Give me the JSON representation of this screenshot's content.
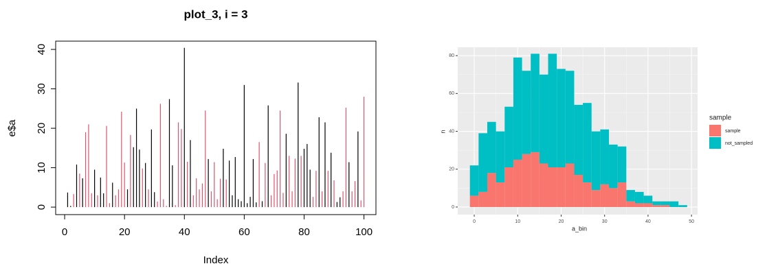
{
  "chart_data": [
    {
      "type": "spike",
      "title": "plot_3, i = 3",
      "xlabel": "Index",
      "ylabel": "e$a",
      "x": [
        1,
        2,
        3,
        4,
        5,
        6,
        7,
        8,
        9,
        10,
        11,
        12,
        13,
        14,
        15,
        16,
        17,
        18,
        19,
        20,
        21,
        22,
        23,
        24,
        25,
        26,
        27,
        28,
        29,
        30,
        31,
        32,
        33,
        34,
        35,
        36,
        37,
        38,
        39,
        40,
        41,
        42,
        43,
        44,
        45,
        46,
        47,
        48,
        49,
        50,
        51,
        52,
        53,
        54,
        55,
        56,
        57,
        58,
        59,
        60,
        61,
        62,
        63,
        64,
        65,
        66,
        67,
        68,
        69,
        70,
        71,
        72,
        73,
        74,
        75,
        76,
        77,
        78,
        79,
        80,
        81,
        82,
        83,
        84,
        85,
        86,
        87,
        88,
        89,
        90,
        91,
        92,
        93,
        94,
        95,
        96,
        97,
        98,
        99,
        100
      ],
      "values": [
        3.7,
        0.3,
        3.3,
        10.8,
        8.5,
        7.3,
        19,
        21,
        3.5,
        9.5,
        3,
        7.5,
        3.5,
        20.6,
        1,
        6.2,
        3,
        4.5,
        24.2,
        11.3,
        4.5,
        18.3,
        15.2,
        25,
        14.6,
        9.8,
        11.2,
        4.5,
        19.7,
        3.8,
        1.4,
        26.2,
        2,
        0.3,
        27.4,
        10.6,
        0.5,
        21.5,
        19.8,
        40.4,
        11.5,
        17,
        3,
        7.3,
        4.5,
        6,
        24.5,
        12.2,
        4,
        11.4,
        2,
        7.2,
        14.8,
        7,
        11.8,
        3,
        12.7,
        2,
        1.5,
        31,
        1,
        2.6,
        12.2,
        1.2,
        16.5,
        1.5,
        11.2,
        25.8,
        3,
        8.4,
        9.3,
        24.5,
        3.6,
        18.6,
        13,
        4,
        12.3,
        31.6,
        13,
        14.8,
        16,
        9.5,
        2.6,
        9.2,
        22.8,
        4,
        21.5,
        9.2,
        13.8,
        6.8,
        1.3,
        2.5,
        4,
        25.2,
        11.4,
        4,
        6.6,
        19.2,
        1.7,
        28
      ],
      "colors": [
        "#000000",
        "#000000",
        "#df536b",
        "#000000",
        "#df536b",
        "#000000",
        "#df536b",
        "#df536b",
        "#df536b",
        "#000000",
        "#df536b",
        "#000000",
        "#000000",
        "#df536b",
        "#df536b",
        "#000000",
        "#df536b",
        "#df536b",
        "#df536b",
        "#df536b",
        "#000000",
        "#df536b",
        "#000000",
        "#000000",
        "#000000",
        "#df536b",
        "#000000",
        "#df536b",
        "#000000",
        "#000000",
        "#df536b",
        "#df536b",
        "#df536b",
        "#df536b",
        "#000000",
        "#000000",
        "#df536b",
        "#df536b",
        "#df536b",
        "#000000",
        "#df536b",
        "#000000",
        "#df536b",
        "#df536b",
        "#df536b",
        "#df536b",
        "#df536b",
        "#000000",
        "#df536b",
        "#df536b",
        "#df536b",
        "#df536b",
        "#000000",
        "#df536b",
        "#000000",
        "#000000",
        "#000000",
        "#000000",
        "#000000",
        "#000000",
        "#000000",
        "#000000",
        "#000000",
        "#000000",
        "#df536b",
        "#000000",
        "#df536b",
        "#000000",
        "#df536b",
        "#df536b",
        "#df536b",
        "#df536b",
        "#df536b",
        "#000000",
        "#df536b",
        "#df536b",
        "#df536b",
        "#000000",
        "#df536b",
        "#000000",
        "#000000",
        "#000000",
        "#df536b",
        "#df536b",
        "#000000",
        "#df536b",
        "#000000",
        "#df536b",
        "#000000",
        "#df536b",
        "#000000",
        "#000000",
        "#df536b",
        "#df536b",
        "#000000",
        "#df536b",
        "#df536b",
        "#000000",
        "#df536b",
        "#df536b"
      ],
      "xlim": [
        -3,
        104
      ],
      "xticks": [
        0,
        20,
        40,
        60,
        80,
        100
      ],
      "ylim": [
        -1.9,
        42.1
      ],
      "yticks": [
        0,
        10,
        20,
        30,
        40
      ]
    },
    {
      "type": "histogram",
      "xlabel": "a_bin",
      "ylabel": "n",
      "legend_title": "sample",
      "stacked": true,
      "grid": true,
      "bins": [
        -1,
        1,
        3,
        5,
        7,
        9,
        11,
        13,
        15,
        17,
        19,
        21,
        23,
        25,
        27,
        29,
        31,
        33,
        35,
        37,
        39,
        41,
        43,
        45,
        47,
        49
      ],
      "series": [
        {
          "name": "sample",
          "color": "#f8766d",
          "values": [
            6,
            8,
            18,
            13,
            21,
            25,
            28,
            29,
            23,
            21,
            21,
            23,
            17,
            13,
            9,
            12,
            10,
            13,
            3,
            2,
            2,
            1,
            1,
            0,
            0
          ]
        },
        {
          "name": "not_sampled",
          "color": "#00bfc4",
          "values": [
            16,
            31,
            27,
            27,
            32,
            54,
            44,
            52,
            47,
            60,
            52,
            49,
            37,
            42,
            31,
            29,
            23,
            19,
            6,
            6,
            4,
            2,
            2,
            3,
            1
          ]
        }
      ],
      "xlim": [
        -3.8,
        51.4
      ],
      "xticks": [
        0,
        10,
        20,
        30,
        40,
        50
      ],
      "ylim": [
        -4,
        84.4
      ],
      "yticks": [
        0,
        20,
        40,
        60,
        80
      ]
    }
  ]
}
